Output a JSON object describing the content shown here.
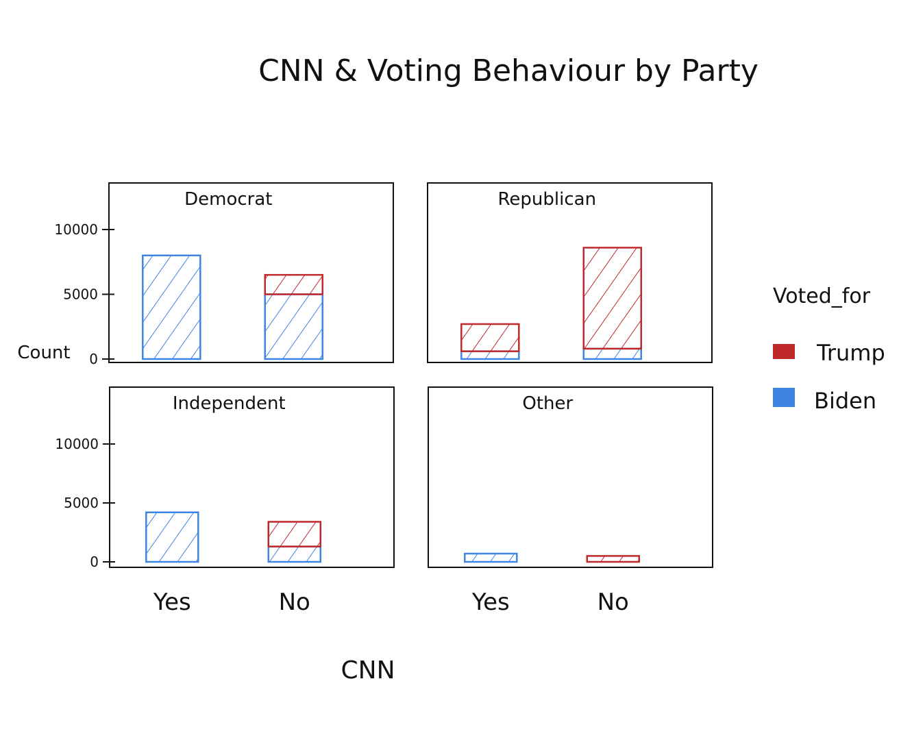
{
  "chart_data": {
    "type": "bar",
    "title": "CNN & Voting Behaviour by Party",
    "xlabel": "CNN",
    "ylabel": "Count",
    "stacked": true,
    "categories": [
      "Yes",
      "No"
    ],
    "ylim": [
      0,
      10000
    ],
    "yticks": [
      "0",
      "5000",
      "10000"
    ],
    "legend": {
      "title": "Voted_for",
      "position": "right",
      "entries": [
        {
          "name": "Trump",
          "color": "#c0292b"
        },
        {
          "name": "Biden",
          "color": "#3d85e0"
        }
      ]
    },
    "facets": [
      {
        "name": "Democrat",
        "series": [
          {
            "name": "Biden",
            "values": [
              8000,
              5000
            ]
          },
          {
            "name": "Trump",
            "values": [
              0,
              1500
            ]
          }
        ]
      },
      {
        "name": "Republican",
        "series": [
          {
            "name": "Biden",
            "values": [
              600,
              800
            ]
          },
          {
            "name": "Trump",
            "values": [
              2100,
              7800
            ]
          }
        ]
      },
      {
        "name": "Independent",
        "series": [
          {
            "name": "Biden",
            "values": [
              4200,
              1300
            ]
          },
          {
            "name": "Trump",
            "values": [
              0,
              2100
            ]
          }
        ]
      },
      {
        "name": "Other",
        "series": [
          {
            "name": "Biden",
            "values": [
              700,
              0
            ]
          },
          {
            "name": "Trump",
            "values": [
              0,
              500
            ]
          }
        ]
      }
    ]
  }
}
